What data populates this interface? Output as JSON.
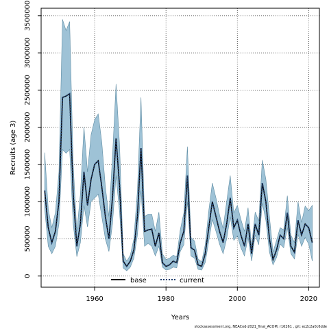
{
  "chart_data": {
    "type": "line",
    "xlabel": "Years",
    "ylabel": "Recruits (age 3)",
    "xlim": [
      1945,
      2023
    ],
    "ylim": [
      -150000,
      3600000
    ],
    "x_ticks": [
      1960,
      1980,
      2000,
      2020
    ],
    "y_ticks": [
      0,
      500000,
      1000000,
      1500000,
      2000000,
      2500000,
      3000000,
      3500000
    ],
    "grid": true,
    "legend_position": "bottom-center",
    "colors": {
      "band": "#9ec2d6",
      "band_edge": "#5f8ca3",
      "base": "#000000",
      "current": "#1f3d6a"
    },
    "years": [
      1946,
      1947,
      1948,
      1949,
      1950,
      1951,
      1952,
      1953,
      1954,
      1955,
      1956,
      1957,
      1958,
      1959,
      1960,
      1961,
      1962,
      1963,
      1964,
      1965,
      1966,
      1967,
      1968,
      1969,
      1970,
      1971,
      1972,
      1973,
      1974,
      1975,
      1976,
      1977,
      1978,
      1979,
      1980,
      1981,
      1982,
      1983,
      1984,
      1985,
      1986,
      1987,
      1988,
      1989,
      1990,
      1991,
      1992,
      1993,
      1994,
      1995,
      1996,
      1997,
      1998,
      1999,
      2000,
      2001,
      2002,
      2003,
      2004,
      2005,
      2006,
      2007,
      2008,
      2009,
      2010,
      2011,
      2012,
      2013,
      2014,
      2015,
      2016,
      2017,
      2018,
      2019,
      2020,
      2021
    ],
    "series": [
      {
        "name": "base",
        "style": "solid",
        "values": [
          1150000,
          650000,
          450000,
          600000,
          1000000,
          2400000,
          2420000,
          2450000,
          1100000,
          400000,
          700000,
          1400000,
          950000,
          1300000,
          1500000,
          1550000,
          1200000,
          800000,
          500000,
          1050000,
          1850000,
          1200000,
          200000,
          130000,
          200000,
          350000,
          800000,
          1720000,
          600000,
          620000,
          630000,
          400000,
          580000,
          180000,
          130000,
          150000,
          200000,
          180000,
          450000,
          600000,
          1350000,
          380000,
          350000,
          150000,
          130000,
          300000,
          650000,
          1000000,
          800000,
          600000,
          450000,
          700000,
          1050000,
          650000,
          750000,
          550000,
          400000,
          700000,
          300000,
          700000,
          550000,
          1250000,
          1000000,
          500000,
          220000,
          350000,
          550000,
          500000,
          850000,
          400000,
          320000,
          750000,
          550000,
          700000,
          650000,
          450000
        ]
      },
      {
        "name": "current",
        "style": "dotted",
        "values": [
          1150000,
          650000,
          450000,
          600000,
          1000000,
          2400000,
          2420000,
          2450000,
          1100000,
          400000,
          700000,
          1400000,
          950000,
          1300000,
          1500000,
          1550000,
          1200000,
          800000,
          500000,
          1050000,
          1850000,
          1200000,
          200000,
          130000,
          200000,
          350000,
          800000,
          1720000,
          600000,
          620000,
          630000,
          400000,
          580000,
          180000,
          130000,
          150000,
          200000,
          180000,
          450000,
          600000,
          1350000,
          380000,
          350000,
          150000,
          130000,
          300000,
          650000,
          1000000,
          800000,
          600000,
          450000,
          700000,
          1050000,
          650000,
          750000,
          550000,
          400000,
          700000,
          300000,
          700000,
          550000,
          1250000,
          1000000,
          500000,
          220000,
          350000,
          550000,
          500000,
          850000,
          400000,
          320000,
          750000,
          550000,
          700000,
          650000,
          450000
        ]
      }
    ],
    "band_upper": [
      1660000,
      900000,
      650000,
      850000,
      1400000,
      3450000,
      3300000,
      3420000,
      1500000,
      600000,
      1100000,
      2000000,
      1400000,
      1900000,
      2100000,
      2180000,
      1800000,
      1200000,
      800000,
      1600000,
      2580000,
      1750000,
      300000,
      200000,
      280000,
      500000,
      1150000,
      2400000,
      800000,
      830000,
      830000,
      600000,
      860000,
      300000,
      220000,
      240000,
      280000,
      260000,
      620000,
      850000,
      1740000,
      520000,
      470000,
      230000,
      190000,
      420000,
      880000,
      1250000,
      1050000,
      820000,
      640000,
      1000000,
      1350000,
      850000,
      950000,
      760000,
      600000,
      920000,
      400000,
      860000,
      740000,
      1560000,
      1300000,
      800000,
      320000,
      480000,
      650000,
      620000,
      1080000,
      550000,
      450000,
      1000000,
      720000,
      940000,
      880000,
      950000
    ],
    "band_lower": [
      900000,
      400000,
      300000,
      400000,
      700000,
      1700000,
      1650000,
      1700000,
      700000,
      260000,
      450000,
      950000,
      660000,
      1000000,
      1050000,
      1100000,
      800000,
      500000,
      330000,
      700000,
      1350000,
      850000,
      110000,
      70000,
      120000,
      240000,
      550000,
      1150000,
      400000,
      440000,
      400000,
      270000,
      400000,
      120000,
      80000,
      90000,
      120000,
      110000,
      330000,
      420000,
      1000000,
      270000,
      240000,
      90000,
      80000,
      180000,
      470000,
      760000,
      600000,
      430000,
      300000,
      500000,
      800000,
      480000,
      540000,
      380000,
      270000,
      520000,
      200000,
      550000,
      420000,
      980000,
      750000,
      320000,
      150000,
      250000,
      430000,
      380000,
      650000,
      300000,
      230000,
      560000,
      400000,
      520000,
      430000,
      200000
    ],
    "footnote": "stockassessment.org,  NEACod-2021_final_ACOM,  r16261  ,  git:  ec2c2a0c6dde"
  }
}
